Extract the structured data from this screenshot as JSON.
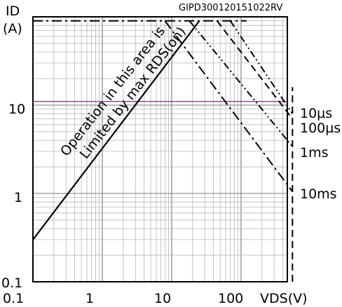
{
  "chart_data": {
    "type": "line",
    "figure_id": "GIPD300120151022RV",
    "ylabel_line1": "ID",
    "ylabel_line2": "(A)",
    "xlabel": "VDS(V)",
    "xscale": "log",
    "yscale": "log",
    "xlim": [
      0.1,
      600
    ],
    "ylim": [
      0.1,
      100
    ],
    "grid": true,
    "x_tick_labels": [
      "0.1",
      "1",
      "10",
      "100"
    ],
    "x_ticks": [
      0.1,
      1,
      10,
      100
    ],
    "y_tick_labels": [
      "0.1",
      "1",
      "10"
    ],
    "y_ticks": [
      0.1,
      1,
      10
    ],
    "annotation_line1": "Operation in this area is",
    "annotation_line2": "Limited by max RDS(on)",
    "reference_line": {
      "y": 11,
      "color": "#7b2d6f"
    },
    "series": [
      {
        "style": "solid",
        "points": [
          [
            0.1,
            0.3
          ],
          [
            25,
            90
          ]
        ]
      },
      {
        "name": "10µs",
        "style": "dash-dot-dot",
        "points": [
          [
            70,
            90
          ],
          [
            550,
            8
          ]
        ]
      },
      {
        "name": "100µs",
        "style": "dash",
        "points": [
          [
            45,
            90
          ],
          [
            550,
            7
          ]
        ]
      },
      {
        "name": "1ms",
        "style": "dash-dot-dot",
        "points": [
          [
            18,
            90
          ],
          [
            550,
            3.4
          ]
        ]
      },
      {
        "name": "10ms",
        "style": "dash-dot",
        "points": [
          [
            8,
            90
          ],
          [
            550,
            1.05
          ]
        ]
      },
      {
        "style": "dash-dot",
        "points": [
          [
            0.1,
            90
          ],
          [
            120,
            90
          ]
        ]
      },
      {
        "style": "dash",
        "points": [
          [
            550,
            0.1
          ],
          [
            550,
            16
          ]
        ]
      }
    ],
    "line_label_values": [
      7.8,
      5.6,
      2.9,
      1.0
    ]
  }
}
